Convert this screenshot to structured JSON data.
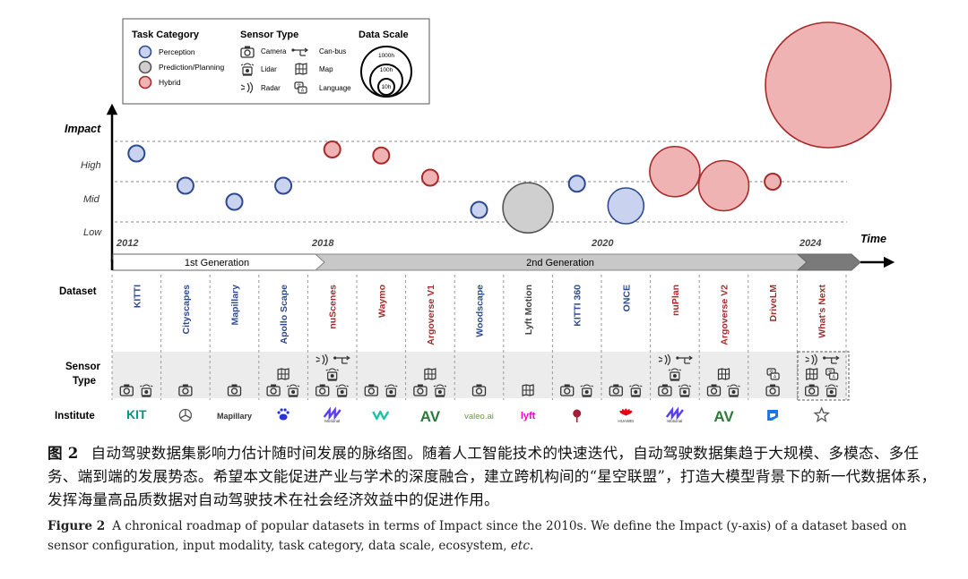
{
  "legend": {
    "task_category": {
      "title": "Task Category",
      "items": [
        {
          "label": "Perception",
          "fill": "#c9d3f0",
          "stroke": "#2d4a8f"
        },
        {
          "label": "Prediction/Planning",
          "fill": "#cfcfcf",
          "stroke": "#555555"
        },
        {
          "label": "Hybrid",
          "fill": "#efb3b3",
          "stroke": "#a82a2a"
        }
      ]
    },
    "sensor_type": {
      "title": "Sensor Type",
      "items": [
        {
          "label": "Camera",
          "icon": "camera-icon"
        },
        {
          "label": "Can-bus",
          "icon": "canbus-icon"
        },
        {
          "label": "Lidar",
          "icon": "lidar-icon"
        },
        {
          "label": "Map",
          "icon": "map-icon"
        },
        {
          "label": "Radar",
          "icon": "radar-icon"
        },
        {
          "label": "Language",
          "icon": "language-icon"
        }
      ]
    },
    "data_scale": {
      "title": "Data Scale",
      "items": [
        "1000h",
        "100h",
        "10h"
      ]
    }
  },
  "axis": {
    "impact_label": "Impact",
    "levels": [
      "High",
      "Mid",
      "Low"
    ],
    "time_label": "Time",
    "years": [
      "2012",
      "2018",
      "2020",
      "2024"
    ]
  },
  "generations": [
    "1st Generation",
    "2nd Generation"
  ],
  "row_labels": {
    "dataset": "Dataset",
    "sensor": "Sensor\nType",
    "institute": "Institute"
  },
  "chart_data": {
    "type": "scatter",
    "y_categories": [
      "Low",
      "Mid",
      "High"
    ],
    "x_ticks": [
      "2012",
      "2018",
      "2020",
      "2024"
    ],
    "points": [
      {
        "dataset": "KITTI",
        "category": "Perception",
        "impact": 2.7,
        "scale": "small",
        "sensors": [
          "camera",
          "lidar"
        ],
        "institute": "KIT"
      },
      {
        "dataset": "Cityscapes",
        "category": "Perception",
        "impact": 1.9,
        "scale": "small",
        "sensors": [
          "camera"
        ],
        "institute": "Mercedes-Benz"
      },
      {
        "dataset": "Mapillary",
        "category": "Perception",
        "impact": 1.5,
        "scale": "small",
        "sensors": [
          "camera"
        ],
        "institute": "Mapillary"
      },
      {
        "dataset": "Apollo Scape",
        "category": "Perception",
        "impact": 1.9,
        "scale": "small",
        "sensors": [
          "map",
          "camera",
          "lidar"
        ],
        "institute": "Baidu"
      },
      {
        "dataset": "nuScenes",
        "category": "Hybrid",
        "impact": 2.8,
        "scale": "small",
        "sensors": [
          "radar",
          "canbus",
          "camera",
          "lidar"
        ],
        "institute": "Motional"
      },
      {
        "dataset": "Waymo",
        "category": "Hybrid",
        "impact": 2.65,
        "scale": "small",
        "sensors": [
          "camera",
          "lidar"
        ],
        "institute": "Waymo"
      },
      {
        "dataset": "Argoverse V1",
        "category": "Hybrid",
        "impact": 2.1,
        "scale": "small",
        "sensors": [
          "map",
          "camera",
          "lidar"
        ],
        "institute": "Argo AI"
      },
      {
        "dataset": "Woodscape",
        "category": "Perception",
        "impact": 1.3,
        "scale": "small",
        "sensors": [
          "camera"
        ],
        "institute": "Valeo.ai"
      },
      {
        "dataset": "Lyft Motion",
        "category": "Prediction/Planning",
        "impact": 1.35,
        "scale": "large",
        "sensors": [
          "map"
        ],
        "institute": "Lyft"
      },
      {
        "dataset": "KITTI 360",
        "category": "Perception",
        "impact": 1.95,
        "scale": "small",
        "sensors": [
          "camera",
          "lidar"
        ],
        "institute": "Tübingen"
      },
      {
        "dataset": "ONCE",
        "category": "Perception",
        "impact": 1.4,
        "scale": "medium",
        "sensors": [
          "camera",
          "lidar"
        ],
        "institute": "Huawei"
      },
      {
        "dataset": "nuPlan",
        "category": "Hybrid",
        "impact": 2.25,
        "scale": "large",
        "sensors": [
          "radar",
          "canbus",
          "camera",
          "lidar"
        ],
        "institute": "Motional"
      },
      {
        "dataset": "Argoverse V2",
        "category": "Hybrid",
        "impact": 1.9,
        "scale": "large",
        "sensors": [
          "map",
          "camera",
          "lidar"
        ],
        "institute": "Argo AI"
      },
      {
        "dataset": "DriveLM",
        "category": "Hybrid",
        "impact": 2.0,
        "scale": "small",
        "sensors": [
          "language",
          "camera"
        ],
        "institute": "OpenDriveLab"
      },
      {
        "dataset": "What's Next",
        "category": "Hybrid",
        "impact": 4.4,
        "scale": "huge",
        "sensors": [
          "radar",
          "canbus",
          "map",
          "language",
          "camera",
          "lidar"
        ],
        "institute": "?"
      }
    ]
  },
  "columns": [
    {
      "name": "KITTI",
      "color": "#2d4a8f",
      "sensors": [
        [
          "camera",
          "lidar"
        ]
      ],
      "logo": "KIT"
    },
    {
      "name": "Cityscapes",
      "color": "#2d4a8f",
      "sensors": [
        [
          "camera"
        ]
      ],
      "logo": "mercedes"
    },
    {
      "name": "Mapillary",
      "color": "#2d4a8f",
      "sensors": [
        [
          "camera"
        ]
      ],
      "logo": "Mapillary"
    },
    {
      "name": "Apollo Scape",
      "color": "#2d4a8f",
      "sensors": [
        [
          "map"
        ],
        [
          "camera",
          "lidar"
        ]
      ],
      "logo": "baidu"
    },
    {
      "name": "nuScenes",
      "color": "#a82a2a",
      "sensors": [
        [
          "radar",
          "canbus"
        ],
        [
          "lidar"
        ],
        [
          "camera",
          "lidar"
        ]
      ],
      "logo": "Motional"
    },
    {
      "name": "Waymo",
      "color": "#a82a2a",
      "sensors": [
        [
          "camera",
          "lidar"
        ]
      ],
      "logo": "waymo"
    },
    {
      "name": "Argoverse V1",
      "color": "#a82a2a",
      "sensors": [
        [
          "map"
        ],
        [
          "camera",
          "lidar"
        ]
      ],
      "logo": "AV"
    },
    {
      "name": "Woodscape",
      "color": "#2d4a8f",
      "sensors": [
        [
          "camera"
        ]
      ],
      "logo": "valeo.ai"
    },
    {
      "name": "Lyft Motion",
      "color": "#444444",
      "sensors": [
        [
          "map"
        ]
      ],
      "logo": "lyft"
    },
    {
      "name": "KITTI 360",
      "color": "#2d4a8f",
      "sensors": [
        [
          "camera",
          "lidar"
        ]
      ],
      "logo": "tuebingen"
    },
    {
      "name": "ONCE",
      "color": "#2d4a8f",
      "sensors": [
        [
          "camera",
          "lidar"
        ]
      ],
      "logo": "HUAWEI"
    },
    {
      "name": "nuPlan",
      "color": "#a82a2a",
      "sensors": [
        [
          "radar",
          "canbus"
        ],
        [
          "lidar"
        ],
        [
          "camera",
          "lidar"
        ]
      ],
      "logo": "Motional"
    },
    {
      "name": "Argoverse V2",
      "color": "#a82a2a",
      "sensors": [
        [
          "map"
        ],
        [
          "camera",
          "lidar"
        ]
      ],
      "logo": "AV"
    },
    {
      "name": "DriveLM",
      "color": "#a82a2a",
      "sensors": [
        [
          "language"
        ],
        [
          "camera"
        ]
      ],
      "logo": "drivelm"
    },
    {
      "name": "What's Next",
      "color": "#a82a2a",
      "sensors": [
        [
          "radar",
          "canbus"
        ],
        [
          "map",
          "language"
        ],
        [
          "camera",
          "lidar"
        ]
      ],
      "logo": "star"
    }
  ],
  "logos": {
    "KIT": "KIT",
    "Mapillary": "Mapillary",
    "Motional": "Motional",
    "AV": "AV",
    "valeo.ai": "valeo.ai",
    "lyft": "lyft",
    "HUAWEI": "HUAWEI"
  },
  "colors": {
    "perception": "#2d4a8f",
    "planning": "#555555",
    "hybrid": "#a82a2a",
    "arrow_gray": "#c8c8c8",
    "arrow_dark": "#7a7a7a"
  },
  "caption_zh": {
    "label": "图 2",
    "text": "自动驾驶数据集影响力估计随时间发展的脉络图。随着人工智能技术的快速迭代，自动驾驶数据集趋于大规模、多模态、多任务、端到端的发展势态。希望本文能促进产业与学术的深度融合，建立跨机构间的“星空联盟”，打造大模型背景下的新一代数据体系，发挥海量高品质数据对自动驾驶技术在社会经济效益中的促进作用。"
  },
  "caption_en": {
    "label": "Figure 2",
    "text": "A chronical roadmap of popular datasets in terms of Impact since the 2010s. We define the Impact (y-axis) of a dataset based on sensor configuration, input modality, task category, data scale, ecosystem, ",
    "etc": "etc",
    "end": "."
  }
}
